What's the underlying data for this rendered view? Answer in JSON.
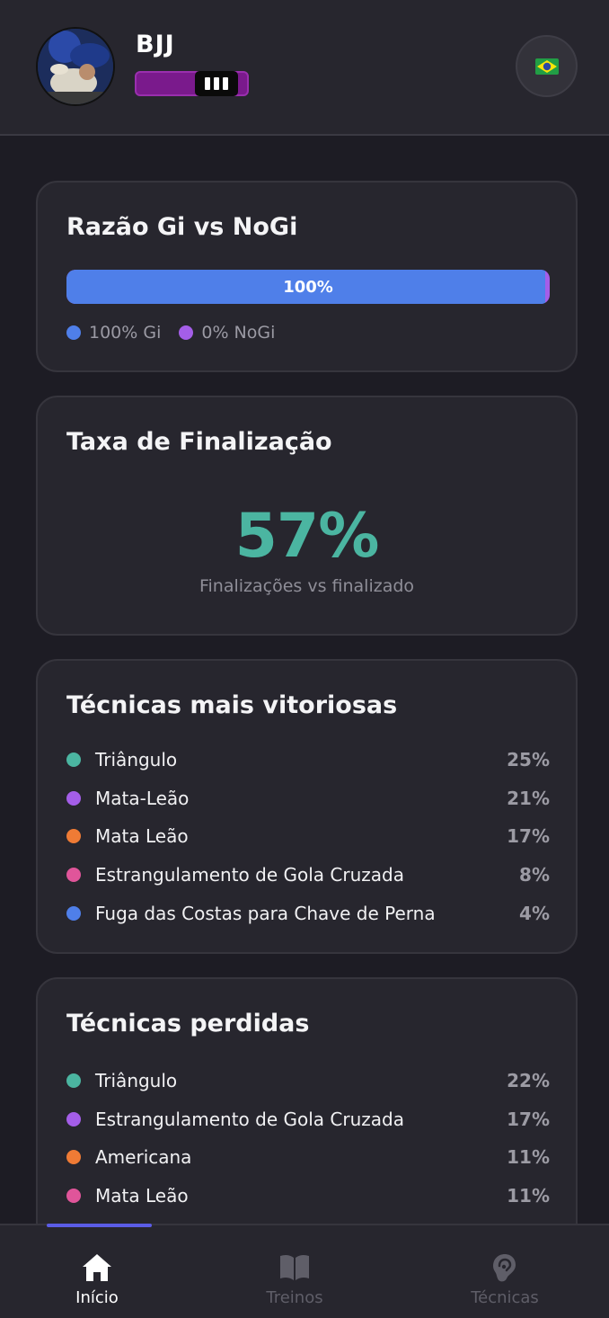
{
  "header": {
    "user_name": "BJJ",
    "belt": {
      "color": "#7a1a8c",
      "degrees": 3
    },
    "language_flag": "🇧🇷"
  },
  "gi_ratio": {
    "title": "Razão Gi vs NoGi",
    "bar_fill_percent": 100,
    "bar_label": "100%",
    "legend": [
      {
        "label": "100% Gi",
        "color": "#4f7fe9"
      },
      {
        "label": "0% NoGi",
        "color": "#a45ee8"
      }
    ]
  },
  "finish_rate": {
    "title": "Taxa de Finalização",
    "value": "57%",
    "caption": "Finalizações vs finalizado"
  },
  "winning_techniques": {
    "title": "Técnicas mais vitoriosas",
    "items": [
      {
        "name": "Triângulo",
        "percent": "25%",
        "color": "#4bb5a1"
      },
      {
        "name": "Mata-Leão",
        "percent": "21%",
        "color": "#a45ee8"
      },
      {
        "name": "Mata Leão",
        "percent": "17%",
        "color": "#ef7b35"
      },
      {
        "name": "Estrangulamento de Gola Cruzada",
        "percent": "8%",
        "color": "#e0559a"
      },
      {
        "name": "Fuga das Costas para Chave de Perna",
        "percent": "4%",
        "color": "#4f7fe9"
      }
    ]
  },
  "lost_techniques": {
    "title": "Técnicas perdidas",
    "items": [
      {
        "name": "Triângulo",
        "percent": "22%",
        "color": "#4bb5a1"
      },
      {
        "name": "Estrangulamento de Gola Cruzada",
        "percent": "17%",
        "color": "#a45ee8"
      },
      {
        "name": "Americana",
        "percent": "11%",
        "color": "#ef7b35"
      },
      {
        "name": "Mata Leão",
        "percent": "11%",
        "color": "#e0559a"
      }
    ]
  },
  "nav": {
    "items": [
      {
        "label": "Início",
        "icon": "home-icon",
        "active": true
      },
      {
        "label": "Treinos",
        "icon": "book-icon",
        "active": false
      },
      {
        "label": "Técnicas",
        "icon": "ear-icon",
        "active": false
      }
    ]
  }
}
